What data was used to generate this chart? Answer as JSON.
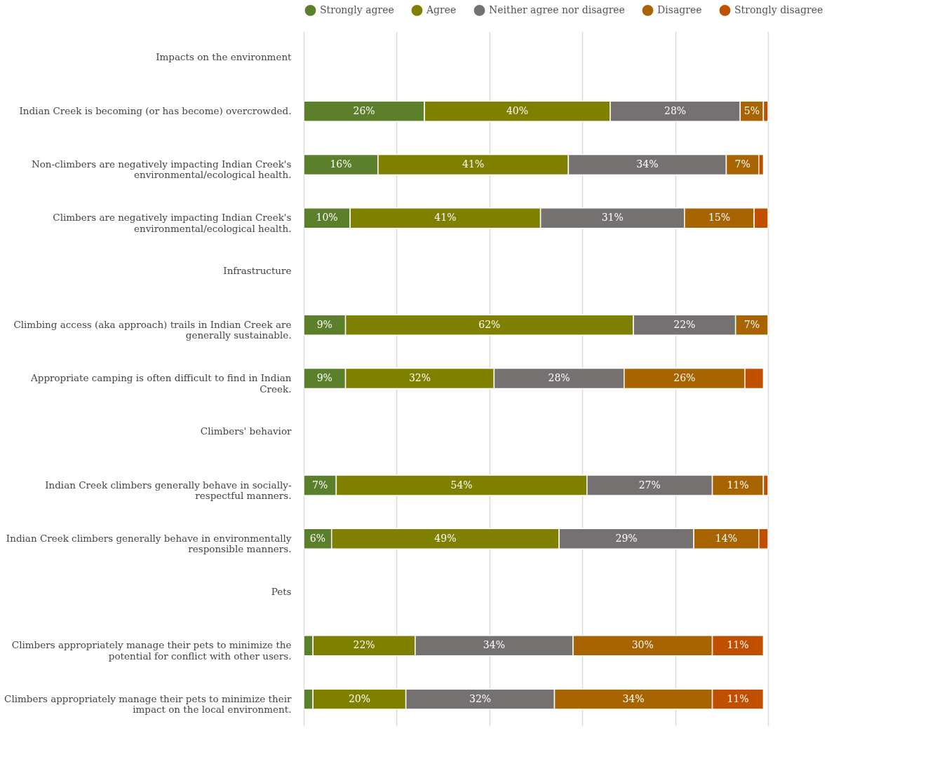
{
  "chart_data": {
    "type": "bar",
    "orientation": "horizontal",
    "stacked": true,
    "legend": "top",
    "grid": "x",
    "tick_labels": "y",
    "xlim": [
      0,
      100
    ],
    "xticks": [
      {
        "value": 0,
        "label": null
      },
      {
        "value": 20,
        "label": null
      },
      {
        "value": 40,
        "label": null
      },
      {
        "value": 60,
        "label": null
      },
      {
        "value": 80,
        "label": null
      },
      {
        "value": 100,
        "label": null
      }
    ],
    "categories": [
      "Impacts on the environment",
      "Indian Creek is becoming (or has become) overcrowded.",
      "Non-climbers are negatively impacting Indian Creek's environmental/ecological health.",
      "Climbers are negatively impacting Indian Creek's environmental/ecological health.",
      "Infrastructure",
      "Climbing access (aka approach) trails in Indian Creek are generally sustainable.",
      "Appropriate camping is often difficult to find in Indian Creek.",
      "Climbers' behavior",
      "Indian Creek climbers generally behave in socially-respectful manners.",
      "Indian Creek climbers generally behave in environmentally responsible manners.",
      "Pets",
      "Climbers appropriately manage their pets to minimize the potential for conflict with other users.",
      "Climbers appropriately manage their pets to minimize their impact on the local environment."
    ],
    "series": [
      {
        "name": "Strongly agree",
        "color": "#5b7f2b",
        "values": [
          null,
          26,
          16,
          10,
          null,
          9,
          9,
          null,
          7,
          6,
          null,
          2,
          2
        ],
        "value_labels": [
          null,
          "26%",
          "16%",
          "10%",
          null,
          "9%",
          "9%",
          null,
          "7%",
          "6%",
          null,
          null,
          null
        ]
      },
      {
        "name": "Agree",
        "color": "#7f8000",
        "values": [
          null,
          40,
          41,
          41,
          null,
          62,
          32,
          null,
          54,
          49,
          null,
          22,
          20
        ],
        "value_labels": [
          null,
          "40%",
          "41%",
          "41%",
          null,
          "62%",
          "32%",
          null,
          "54%",
          "49%",
          null,
          "22%",
          "20%"
        ]
      },
      {
        "name": "Neither agree nor disagree",
        "color": "#767171",
        "values": [
          null,
          28,
          34,
          31,
          null,
          22,
          28,
          null,
          27,
          29,
          null,
          34,
          32
        ],
        "value_labels": [
          null,
          "28%",
          "34%",
          "31%",
          null,
          "22%",
          "28%",
          null,
          "27%",
          "29%",
          null,
          "34%",
          "32%"
        ]
      },
      {
        "name": "Disagree",
        "color": "#a86400",
        "values": [
          null,
          5,
          7,
          15,
          null,
          7,
          26,
          null,
          11,
          14,
          null,
          30,
          34
        ],
        "value_labels": [
          null,
          "5%",
          "7%",
          "15%",
          null,
          "7%",
          "26%",
          null,
          "11%",
          "14%",
          null,
          "30%",
          "34%"
        ]
      },
      {
        "name": "Strongly disagree",
        "color": "#c05000",
        "values": [
          null,
          1,
          1,
          3,
          null,
          null,
          4,
          null,
          1,
          2,
          null,
          11,
          11
        ],
        "value_labels": [
          null,
          null,
          null,
          null,
          null,
          null,
          null,
          null,
          null,
          null,
          null,
          "11%",
          "11%"
        ]
      }
    ]
  }
}
